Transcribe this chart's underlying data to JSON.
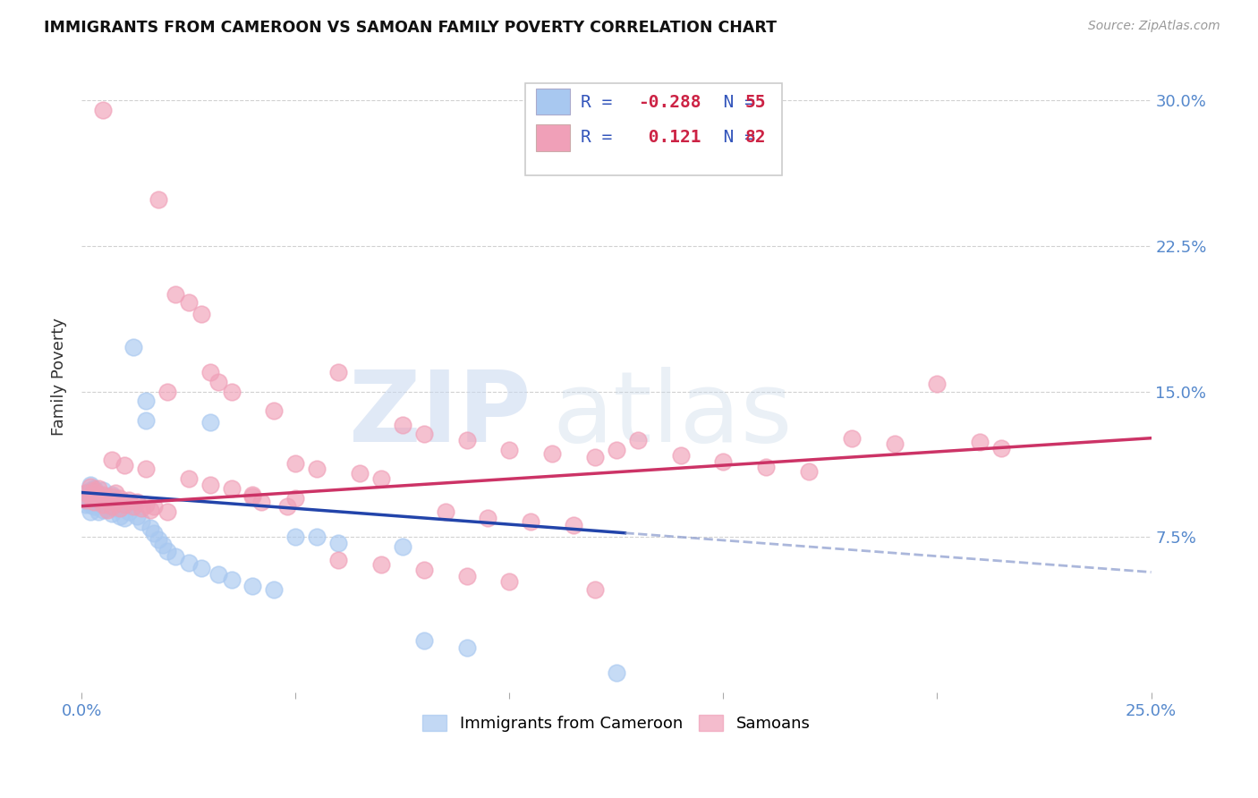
{
  "title": "IMMIGRANTS FROM CAMEROON VS SAMOAN FAMILY POVERTY CORRELATION CHART",
  "source": "Source: ZipAtlas.com",
  "ylabel": "Family Poverty",
  "xlim": [
    0.0,
    0.25
  ],
  "ylim": [
    -0.005,
    0.32
  ],
  "xticks": [
    0.0,
    0.05,
    0.1,
    0.15,
    0.2,
    0.25
  ],
  "xticklabels": [
    "0.0%",
    "",
    "",
    "",
    "",
    "25.0%"
  ],
  "ytick_positions": [
    0.075,
    0.15,
    0.225,
    0.3
  ],
  "yticklabels": [
    "7.5%",
    "15.0%",
    "22.5%",
    "30.0%"
  ],
  "blue_color": "#a8c8f0",
  "pink_color": "#f0a0b8",
  "trend_blue": "#2244aa",
  "trend_pink": "#cc3366",
  "trend_blue_dashed": "#8899cc",
  "legend_label1": "Immigrants from Cameroon",
  "legend_label2": "Samoans",
  "blue_scatter_x": [
    0.001,
    0.001,
    0.001,
    0.002,
    0.002,
    0.002,
    0.002,
    0.002,
    0.003,
    0.003,
    0.003,
    0.004,
    0.004,
    0.004,
    0.005,
    0.005,
    0.005,
    0.006,
    0.006,
    0.007,
    0.007,
    0.007,
    0.008,
    0.008,
    0.009,
    0.009,
    0.01,
    0.01,
    0.011,
    0.012,
    0.012,
    0.013,
    0.014,
    0.015,
    0.015,
    0.016,
    0.017,
    0.018,
    0.019,
    0.02,
    0.022,
    0.025,
    0.028,
    0.03,
    0.032,
    0.035,
    0.04,
    0.045,
    0.05,
    0.055,
    0.06,
    0.075,
    0.08,
    0.09,
    0.125
  ],
  "blue_scatter_y": [
    0.098,
    0.095,
    0.092,
    0.102,
    0.099,
    0.095,
    0.092,
    0.088,
    0.1,
    0.096,
    0.091,
    0.097,
    0.093,
    0.088,
    0.099,
    0.094,
    0.089,
    0.096,
    0.09,
    0.097,
    0.092,
    0.087,
    0.095,
    0.09,
    0.093,
    0.086,
    0.092,
    0.085,
    0.088,
    0.173,
    0.091,
    0.086,
    0.083,
    0.135,
    0.145,
    0.08,
    0.077,
    0.074,
    0.071,
    0.068,
    0.065,
    0.062,
    0.059,
    0.134,
    0.056,
    0.053,
    0.05,
    0.048,
    0.075,
    0.075,
    0.072,
    0.07,
    0.022,
    0.018,
    0.005
  ],
  "pink_scatter_x": [
    0.001,
    0.001,
    0.002,
    0.002,
    0.003,
    0.003,
    0.004,
    0.004,
    0.005,
    0.005,
    0.005,
    0.006,
    0.006,
    0.007,
    0.007,
    0.008,
    0.008,
    0.009,
    0.009,
    0.01,
    0.011,
    0.012,
    0.013,
    0.014,
    0.015,
    0.016,
    0.017,
    0.018,
    0.02,
    0.022,
    0.025,
    0.028,
    0.03,
    0.032,
    0.035,
    0.04,
    0.042,
    0.045,
    0.048,
    0.05,
    0.055,
    0.06,
    0.065,
    0.07,
    0.075,
    0.08,
    0.085,
    0.09,
    0.095,
    0.1,
    0.105,
    0.11,
    0.115,
    0.12,
    0.125,
    0.13,
    0.14,
    0.15,
    0.16,
    0.17,
    0.18,
    0.19,
    0.2,
    0.21,
    0.215,
    0.003,
    0.005,
    0.007,
    0.01,
    0.015,
    0.02,
    0.025,
    0.03,
    0.035,
    0.04,
    0.05,
    0.06,
    0.07,
    0.08,
    0.09,
    0.1,
    0.12
  ],
  "pink_scatter_y": [
    0.098,
    0.094,
    0.101,
    0.096,
    0.098,
    0.093,
    0.1,
    0.095,
    0.097,
    0.092,
    0.295,
    0.094,
    0.089,
    0.096,
    0.091,
    0.098,
    0.093,
    0.095,
    0.09,
    0.092,
    0.094,
    0.091,
    0.093,
    0.09,
    0.092,
    0.089,
    0.091,
    0.249,
    0.088,
    0.2,
    0.196,
    0.19,
    0.16,
    0.155,
    0.15,
    0.096,
    0.093,
    0.14,
    0.091,
    0.113,
    0.11,
    0.16,
    0.108,
    0.105,
    0.133,
    0.128,
    0.088,
    0.125,
    0.085,
    0.12,
    0.083,
    0.118,
    0.081,
    0.116,
    0.12,
    0.125,
    0.117,
    0.114,
    0.111,
    0.109,
    0.126,
    0.123,
    0.154,
    0.124,
    0.121,
    0.099,
    0.096,
    0.115,
    0.112,
    0.11,
    0.15,
    0.105,
    0.102,
    0.1,
    0.097,
    0.095,
    0.063,
    0.061,
    0.058,
    0.055,
    0.052,
    0.048
  ],
  "blue_trend_x0": 0.0,
  "blue_trend_x_solid_end": 0.127,
  "blue_trend_x_dashed_end": 0.25,
  "blue_trend_y0": 0.098,
  "blue_trend_y_end": 0.057,
  "pink_trend_x0": 0.0,
  "pink_trend_x_end": 0.25,
  "pink_trend_y0": 0.091,
  "pink_trend_y_end": 0.126
}
